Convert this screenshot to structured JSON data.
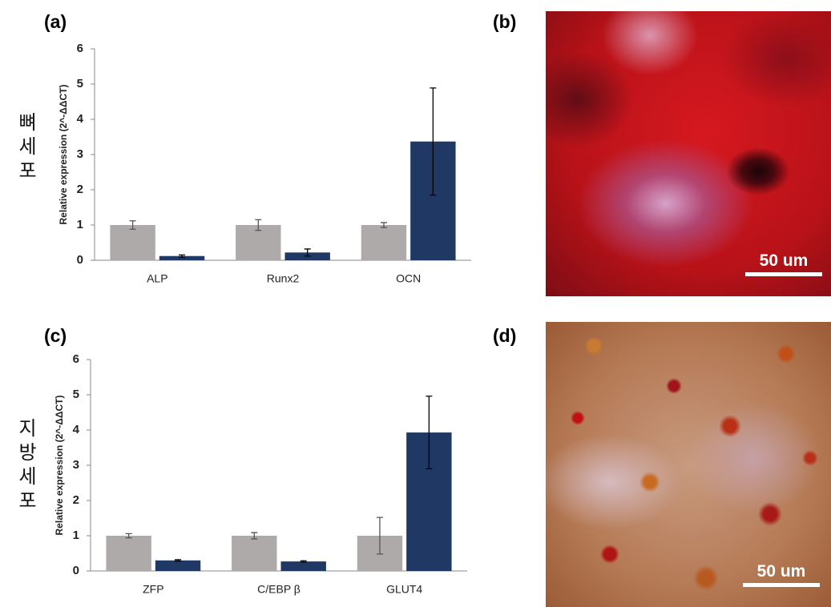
{
  "panels": [
    {
      "label": "(a)",
      "side_label": "뼈세포"
    },
    {
      "label": "(b)",
      "scale_bar": "50 um"
    },
    {
      "label": "(c)",
      "side_label": "지방세포"
    },
    {
      "label": "(d)",
      "scale_bar": "50 um"
    }
  ],
  "chart_data": [
    {
      "type": "bar",
      "ylabel": "Relative expression (2^-ΔΔCT)",
      "categories": [
        "ALP",
        "Runx2",
        "OCN"
      ],
      "series": [
        {
          "color": "#aeaaaa",
          "values": [
            1,
            1,
            1
          ],
          "errors": [
            0.12,
            0.15,
            0.07
          ]
        },
        {
          "color": "#1f3864",
          "values": [
            0.12,
            0.22,
            3.37
          ],
          "errors": [
            0.03,
            0.1,
            1.52
          ]
        }
      ],
      "ylim": [
        0,
        6
      ],
      "yticks": [
        0,
        1,
        2,
        3,
        4,
        5,
        6
      ]
    },
    {
      "type": "bar",
      "ylabel": "Relative expression (2^-ΔΔCT)",
      "categories": [
        "ZFP",
        "C/EBP β",
        "GLUT4"
      ],
      "series": [
        {
          "color": "#aeaaaa",
          "values": [
            1,
            1,
            1
          ],
          "errors": [
            0.06,
            0.09,
            0.52
          ]
        },
        {
          "color": "#1f3864",
          "values": [
            0.3,
            0.27,
            3.93
          ],
          "errors": [
            0.02,
            0.02,
            1.03
          ]
        }
      ],
      "ylim": [
        0,
        6
      ],
      "yticks": [
        0,
        1,
        2,
        3,
        4,
        5,
        6
      ]
    }
  ]
}
